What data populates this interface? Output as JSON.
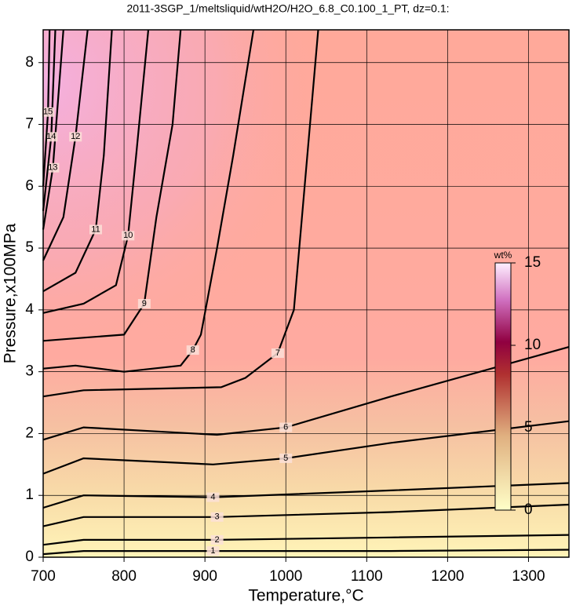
{
  "chart_data": {
    "type": "contour",
    "title": "2011-3SGP_1/meltsliquid/wtH2O/H2O_6.8_C0.100_1_PT, dz=0.1:",
    "xlabel": "Temperature,°C",
    "ylabel": "Pressure,x100MPa",
    "xlim": [
      700,
      1350
    ],
    "ylim": [
      0,
      8.53
    ],
    "xticks": [
      700,
      800,
      900,
      1000,
      1100,
      1200,
      1300
    ],
    "yticks": [
      0,
      1,
      2,
      3,
      4,
      5,
      6,
      7,
      8
    ],
    "grid": true,
    "color": "#000000",
    "colorbar": {
      "label": "wt%",
      "lim": [
        0,
        15
      ],
      "ticks": [
        0,
        5,
        10,
        15
      ]
    },
    "series": [
      {
        "name": "1",
        "x": [
          700,
          750,
          910,
          1130,
          1350
        ],
        "values": [
          0.05,
          0.1,
          0.1,
          0.1,
          0.12
        ]
      },
      {
        "name": "2",
        "x": [
          700,
          750,
          915,
          1130,
          1350
        ],
        "values": [
          0.2,
          0.28,
          0.28,
          0.32,
          0.36
        ]
      },
      {
        "name": "3",
        "x": [
          700,
          750,
          915,
          1130,
          1350
        ],
        "values": [
          0.5,
          0.65,
          0.65,
          0.73,
          0.85
        ]
      },
      {
        "name": "4",
        "x": [
          700,
          750,
          910,
          1130,
          1350
        ],
        "values": [
          0.8,
          1.0,
          0.97,
          1.08,
          1.2
        ]
      },
      {
        "name": "5",
        "x": [
          700,
          750,
          910,
          1000,
          1130,
          1350
        ],
        "values": [
          1.35,
          1.6,
          1.5,
          1.6,
          1.85,
          2.2
        ]
      },
      {
        "name": "6",
        "x": [
          700,
          750,
          915,
          1000,
          1130,
          1350
        ],
        "values": [
          1.9,
          2.1,
          1.98,
          2.1,
          2.6,
          3.4
        ]
      },
      {
        "name": "7",
        "x": [
          700,
          750,
          920,
          950,
          990,
          1010,
          1020,
          1040
        ],
        "values": [
          2.6,
          2.7,
          2.75,
          2.9,
          3.3,
          4.0,
          5.5,
          8.53
        ]
      },
      {
        "name": "8",
        "x": [
          700,
          740,
          800,
          870,
          885,
          895,
          915,
          935,
          960
        ],
        "values": [
          3.05,
          3.1,
          3.0,
          3.1,
          3.35,
          3.6,
          5.0,
          6.5,
          8.53
        ]
      },
      {
        "name": "9",
        "x": [
          700,
          750,
          800,
          825,
          840,
          860,
          870
        ],
        "values": [
          3.5,
          3.55,
          3.6,
          4.1,
          5.5,
          7.0,
          8.53
        ]
      },
      {
        "name": "10",
        "x": [
          700,
          750,
          790,
          805,
          815,
          830
        ],
        "values": [
          3.95,
          4.1,
          4.4,
          5.2,
          6.5,
          8.53
        ]
      },
      {
        "name": "11",
        "x": [
          700,
          740,
          765,
          775,
          785
        ],
        "values": [
          4.3,
          4.6,
          5.3,
          6.5,
          8.53
        ]
      },
      {
        "name": "12",
        "x": [
          700,
          725,
          740,
          755
        ],
        "values": [
          4.8,
          5.5,
          6.8,
          8.53
        ]
      },
      {
        "name": "13",
        "x": [
          700,
          712,
          725
        ],
        "values": [
          5.3,
          6.3,
          8.53
        ]
      },
      {
        "name": "14",
        "x": [
          700,
          710,
          715
        ],
        "values": [
          5.6,
          6.8,
          8.53
        ]
      },
      {
        "name": "15",
        "x": [
          700,
          706,
          708
        ],
        "values": [
          6.0,
          7.2,
          8.53
        ]
      }
    ]
  }
}
